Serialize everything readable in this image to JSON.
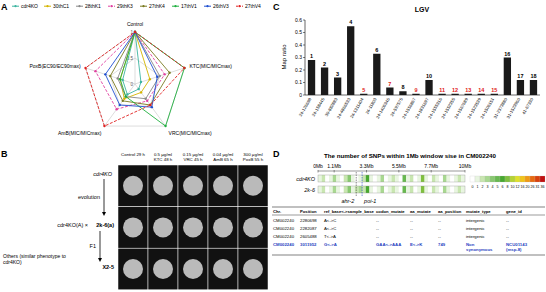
{
  "chart_data": [
    {
      "type": "radar",
      "panel": "A",
      "axes": [
        "Control",
        "KTC(MIC/MICmax)",
        "VRC(MIC/MICmax)",
        "AmB(MIC/MICmax)",
        "PoxB(EC90/EC90max)"
      ],
      "rlim": [
        0,
        1
      ],
      "rticks": [
        0,
        0.5,
        1
      ],
      "legend": "top",
      "series": [
        {
          "name": "cdr4KO",
          "color": "#3cb4a0",
          "line_style": "solid",
          "marker": "circle",
          "values": [
            1,
            0.12,
            0.12,
            0.25,
            0.25
          ]
        },
        {
          "name": "30thC1",
          "color": "#d4b400",
          "line_style": "solid",
          "marker": "circle",
          "values": [
            1,
            0.3,
            0.2,
            0.35,
            0.3
          ]
        },
        {
          "name": "28thK1",
          "color": "#888888",
          "line_style": "solid",
          "marker": "circle",
          "values": [
            1,
            0.5,
            0.35,
            0.3,
            0.35
          ]
        },
        {
          "name": "29thK3",
          "color": "#e040a0",
          "line_style": "dashed",
          "marker": "circle",
          "values": [
            1,
            0.6,
            0.4,
            0.6,
            0.8
          ]
        },
        {
          "name": "27thK4",
          "color": "#7a7a20",
          "line_style": "solid",
          "marker": "circle",
          "values": [
            1,
            0.7,
            0.5,
            0.4,
            0.5
          ]
        },
        {
          "name": "17thV1",
          "color": "#20b040",
          "line_style": "solid",
          "marker": "circle",
          "values": [
            1,
            1,
            1,
            0.3,
            0.3
          ]
        },
        {
          "name": "26thV3",
          "color": "#2050d0",
          "line_style": "solid",
          "marker": "circle",
          "values": [
            1,
            0.45,
            0.55,
            0.5,
            0.6
          ]
        },
        {
          "name": "27thV4",
          "color": "#e02020",
          "line_style": "dashed",
          "marker": "circle",
          "values": [
            1,
            1,
            0.5,
            1,
            1
          ]
        }
      ]
    },
    {
      "type": "bar",
      "panel": "C",
      "title": "LGV",
      "y_label": "Map ratio",
      "color": "#1a1a1a",
      "grid": false,
      "categories": [
        "24-126698",
        "24-158445",
        "30-882883",
        "24-4866533",
        "24-1311404",
        "24-11803",
        "24-1406346",
        "24-597575",
        "24-1556867",
        "24-1831697",
        "24-1555316",
        "24-1552355",
        "24-1567689",
        "24-1523539",
        "24-1506151",
        "31-2373880",
        "31-1523960",
        "41-67330"
      ],
      "values": [
        0.28,
        0.22,
        0.14,
        0.55,
        0.01,
        0.33,
        0.06,
        0.03,
        0.01,
        0.12,
        0.01,
        0.01,
        0.01,
        0.01,
        0.01,
        0.3,
        0.12,
        0.12
      ],
      "annotations": [
        "1",
        "2",
        "3",
        "4",
        "5",
        "6",
        "7",
        "8",
        "9",
        "10",
        "11",
        "12",
        "13",
        "14",
        "15",
        "16",
        "17",
        "18"
      ],
      "annotation_colors": [
        "#000000",
        "#000000",
        "#000000",
        "#000000",
        "#e02020",
        "#000000",
        "#e02020",
        "#000000",
        "#e02020",
        "#000000",
        "#e02020",
        "#e02020",
        "#e02020",
        "#e02020",
        "#e02020",
        "#000000",
        "#000000",
        "#000000"
      ],
      "ylim": [
        0,
        0.6
      ],
      "yticks": [
        0,
        0.1,
        0.2,
        0.3,
        0.4,
        0.5,
        0.6
      ]
    }
  ],
  "panel_b": {
    "panel": "B",
    "columns": [
      "Control 29 h",
      "0.5 μg/ml KTC 48 h",
      "0.15 μg/ml VRC 45 h",
      "0.04 μg/ml AmB 65 h",
      "300 μg/ml PoxB 55 h"
    ],
    "rows": [
      "cdr4KO",
      "2k-6(a)",
      "X2-5"
    ],
    "evolution": "evolution",
    "cross": "cdr4KO(A) ×",
    "f1": "F1",
    "others": "Others (similar phenotype to cdr4KO)"
  },
  "panel_d": {
    "panel": "D",
    "title": "The number of SNPs within 1Mb window sise in CM002240",
    "xlim": [
      0,
      10
    ],
    "xticks": [
      {
        "value": 0,
        "label": "0Mb"
      },
      {
        "value": 1.1,
        "label": "1.1Mb"
      },
      {
        "value": 3.3,
        "label": "3.3Mb"
      },
      {
        "value": 5.5,
        "label": "5.5Mb"
      },
      {
        "value": 7.7,
        "label": "7.7Mb"
      },
      {
        "value": 10,
        "label": "10Mb"
      }
    ],
    "tracks": [
      {
        "name": "cdr4KO",
        "counts": [
          1,
          2,
          0,
          1,
          3,
          1,
          0,
          2,
          4,
          1,
          0,
          1,
          2,
          6,
          1,
          0,
          1,
          3,
          0,
          1,
          2,
          1,
          0,
          5,
          1,
          2,
          0,
          1,
          8,
          1,
          0,
          2,
          1,
          0,
          3,
          1,
          0,
          1,
          2,
          1
        ]
      },
      {
        "name": "2k-6",
        "counts": [
          1,
          2,
          0,
          1,
          3,
          1,
          0,
          2,
          4,
          1,
          2,
          3,
          2,
          6,
          1,
          0,
          1,
          3,
          0,
          1,
          2,
          1,
          0,
          5,
          1,
          2,
          0,
          1,
          8,
          1,
          0,
          2,
          1,
          0,
          3,
          1,
          0,
          1,
          2,
          1
        ]
      }
    ],
    "color_scale": {
      "values": [
        0,
        1,
        2,
        3,
        4,
        5,
        6,
        8,
        10,
        12,
        16,
        20,
        26,
        31,
        36
      ],
      "colors": [
        "#ffffff",
        "#e8f5e0",
        "#c8e6b0",
        "#a8d890",
        "#88c870",
        "#68b850",
        "#48a830",
        "#7fbf3f",
        "#b5d334",
        "#dfe02a",
        "#f2c419",
        "#f09a14",
        "#e86a10",
        "#d8400c",
        "#c01010"
      ]
    },
    "markers": [
      {
        "label": "ahr-2",
        "position": 2.6
      },
      {
        "label": "poi-1",
        "position": 3.0
      }
    ],
    "table": {
      "header": [
        "Chr.",
        "Position",
        "ref_base<->sample_base",
        "codon_mutate",
        "aa_mutate",
        "aa_position",
        "mutate_type",
        "gene_id"
      ],
      "rows": [
        [
          "CM002240",
          "2280698",
          "A<->C",
          "--",
          "--",
          "--",
          "intergenic",
          "--"
        ],
        [
          "CM002240",
          "2282087",
          "A<->C",
          "--",
          "--",
          "--",
          "intergenic",
          "--"
        ],
        [
          "CM002240",
          "2605488",
          "T<->A",
          "--",
          "--",
          "--",
          "intergenic",
          "--"
        ],
        [
          "CM002240",
          "3011952",
          "G<->A",
          "GAA<->AAA",
          "E<->K",
          "749",
          "Non synonymous",
          "NCU01143 (msp-8)"
        ]
      ],
      "row_colors": [
        "#000000",
        "#000000",
        "#000000",
        "#1f3fbf"
      ]
    }
  }
}
